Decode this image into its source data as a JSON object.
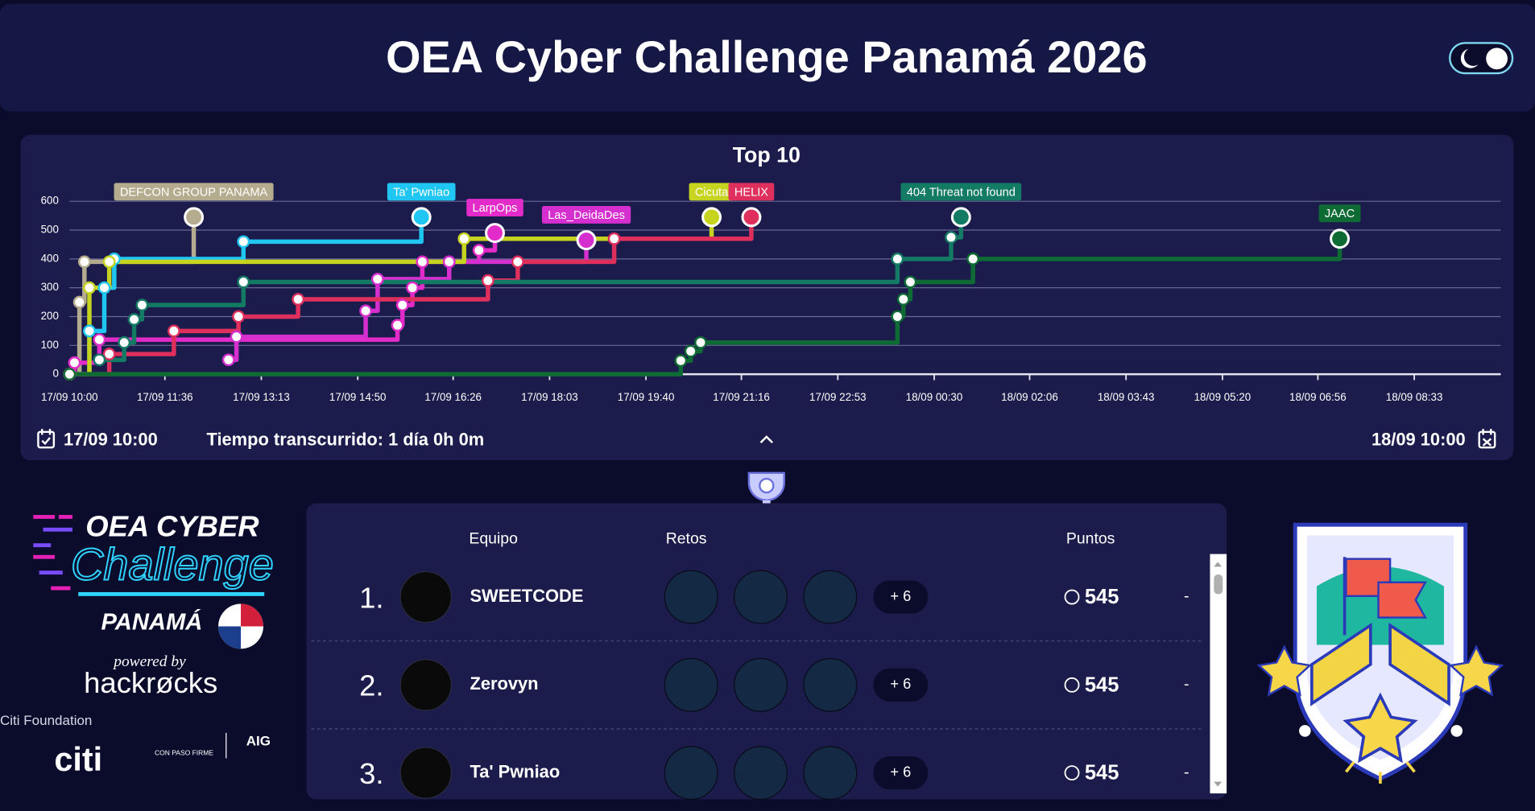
{
  "header": {
    "title": "OEA Cyber Challenge Panamá 2026"
  },
  "chart_data": {
    "type": "line",
    "title": "Top 10",
    "step": true,
    "xlim": [
      "17/09 10:00",
      "18/09 10:00"
    ],
    "xticks": [
      "17/09 10:00",
      "17/09 11:36",
      "17/09 13:13",
      "17/09 14:50",
      "17/09 16:26",
      "17/09 18:03",
      "17/09 19:40",
      "17/09 21:16",
      "17/09 22:53",
      "18/09 00:30",
      "18/09 02:06",
      "18/09 03:43",
      "18/09 05:20",
      "18/09 06:56",
      "18/09 08:33"
    ],
    "ylim": [
      0,
      600
    ],
    "yticks": [
      0,
      100,
      200,
      300,
      400,
      500,
      600
    ],
    "grid": true,
    "series": [
      {
        "name": "DEFCON GROUP PANAMA",
        "color": "#b5ab8e",
        "x": [
          "17/09 10:00",
          "17/09 10:10",
          "17/09 10:15",
          "17/09 12:05"
        ],
        "values": [
          0,
          250,
          390,
          545
        ]
      },
      {
        "name": "Ta' Pwniao",
        "color": "#1fc6f2",
        "x": [
          "17/09 10:00",
          "17/09 10:20",
          "17/09 10:35",
          "17/09 10:45",
          "17/09 12:55",
          "17/09 15:54"
        ],
        "values": [
          0,
          150,
          300,
          400,
          460,
          545
        ]
      },
      {
        "name": "LarpOps",
        "color": "#e22bc8",
        "x": [
          "17/09 10:00",
          "17/09 10:05",
          "17/09 10:30",
          "17/09 15:30",
          "17/09 15:35",
          "17/09 15:45",
          "17/09 15:55",
          "17/09 16:52",
          "17/09 17:08"
        ],
        "values": [
          0,
          40,
          120,
          170,
          240,
          300,
          390,
          430,
          490
        ]
      },
      {
        "name": "Las_DeidaDes",
        "color": "#d62fd0",
        "x": [
          "17/09 12:40",
          "17/09 12:48",
          "17/09 14:58",
          "17/09 15:10",
          "17/09 16:22",
          "17/09 18:40"
        ],
        "values": [
          50,
          130,
          220,
          330,
          390,
          465
        ]
      },
      {
        "name": "Cicuta",
        "color": "#c6d31f",
        "x": [
          "17/09 10:00",
          "17/09 10:20",
          "17/09 10:40",
          "17/09 16:37",
          "17/09 20:46"
        ],
        "values": [
          0,
          300,
          390,
          470,
          545
        ]
      },
      {
        "name": "HELIX",
        "color": "#df2f5d",
        "x": [
          "17/09 10:00",
          "17/09 10:40",
          "17/09 11:45",
          "17/09 12:50",
          "17/09 13:50",
          "17/09 17:01",
          "17/09 17:31",
          "17/09 19:08",
          "17/09 21:26"
        ],
        "values": [
          0,
          70,
          150,
          200,
          260,
          325,
          390,
          470,
          545
        ]
      },
      {
        "name": "404 Threat not found",
        "color": "#137a64",
        "x": [
          "17/09 10:30",
          "17/09 10:55",
          "17/09 11:05",
          "17/09 11:13",
          "17/09 12:55",
          "17/09 23:53",
          "18/09 00:47",
          "18/09 00:57"
        ],
        "values": [
          50,
          110,
          190,
          240,
          320,
          400,
          475,
          545
        ]
      },
      {
        "name": "JAAC",
        "color": "#0f6b34",
        "x": [
          "17/09 10:00",
          "17/09 20:15",
          "17/09 20:25",
          "17/09 20:35",
          "17/09 23:53",
          "17/09 23:59",
          "18/09 00:06",
          "18/09 01:09",
          "18/09 07:18"
        ],
        "values": [
          0,
          47,
          80,
          110,
          200,
          260,
          320,
          400,
          470
        ]
      }
    ]
  },
  "timeline": {
    "start": "17/09 10:00",
    "elapsed": "Tiempo transcurrido: 1 día 0h 0m",
    "end": "18/09 10:00"
  },
  "leaderboard": {
    "headers": [
      "Equipo",
      "Retos",
      "Puntos"
    ],
    "rows": [
      {
        "rank": "1.",
        "team": "SWEETCODE",
        "more": "+ 6",
        "points": 545,
        "change": "-"
      },
      {
        "rank": "2.",
        "team": "Zerovyn",
        "more": "+ 6",
        "points": 545,
        "change": "-"
      },
      {
        "rank": "3.",
        "team": "Ta' Pwniao",
        "more": "+ 6",
        "points": 545,
        "change": "-"
      }
    ]
  },
  "sidebar": {
    "logo_top": "OEA CYBER",
    "logo_main": "Challenge",
    "logo_country": "PANAMÁ",
    "powered": "powered by",
    "brand": "hackrøcks",
    "sponsor": "Citi Foundation",
    "citi": "citi",
    "gov": "CON PASO FIRME",
    "aig": "AIG"
  }
}
